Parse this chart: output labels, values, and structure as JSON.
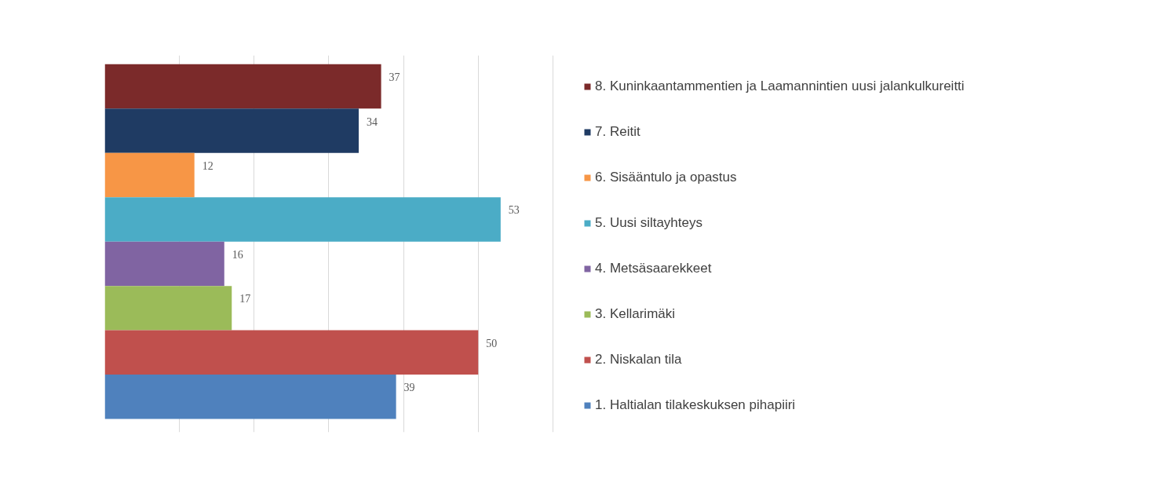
{
  "chart_data": {
    "type": "bar",
    "orientation": "horizontal",
    "stacked": true,
    "categories": [
      null,
      null,
      null,
      null,
      null,
      null,
      null,
      null
    ],
    "series": [
      {
        "name": "8. Kuninkaantammentien ja Laamannintien uusi jalankulkureitti",
        "color": "#7b2a2a",
        "values": [
          37,
          null,
          null,
          null,
          null,
          null,
          null,
          null
        ]
      },
      {
        "name": "7. Reitit",
        "color": "#1f3b63",
        "values": [
          null,
          34,
          null,
          null,
          null,
          null,
          null,
          null
        ]
      },
      {
        "name": "6. Sisääntulo ja opastus",
        "color": "#f79646",
        "values": [
          null,
          null,
          12,
          null,
          null,
          null,
          null,
          null
        ]
      },
      {
        "name": "5. Uusi siltayhteys",
        "color": "#4bacc6",
        "values": [
          null,
          null,
          null,
          53,
          null,
          null,
          null,
          null
        ]
      },
      {
        "name": "4. Metsäsaarekkeet",
        "color": "#8064a2",
        "values": [
          null,
          null,
          null,
          null,
          16,
          null,
          null,
          null
        ]
      },
      {
        "name": "3. Kellarimäki",
        "color": "#9bbb59",
        "values": [
          null,
          null,
          null,
          null,
          null,
          17,
          null,
          null
        ]
      },
      {
        "name": "2. Niskalan tila",
        "color": "#c0504d",
        "values": [
          null,
          null,
          null,
          null,
          null,
          null,
          50,
          null
        ]
      },
      {
        "name": "1. Haltialan tilakeskuksen pihapiiri",
        "color": "#4f81bd",
        "values": [
          null,
          null,
          null,
          null,
          null,
          null,
          null,
          39
        ]
      }
    ],
    "tick_labels": false,
    "grid": "x",
    "data_labels": true,
    "legend": "right"
  }
}
